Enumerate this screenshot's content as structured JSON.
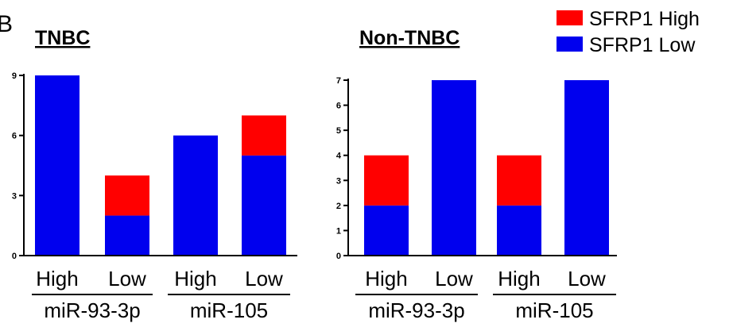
{
  "figure": {
    "panel_letter": "B"
  },
  "legend": {
    "items": [
      {
        "label": "SFRP1 High",
        "color": "#ff0000"
      },
      {
        "label": "SFRP1 Low",
        "color": "#0000ee"
      }
    ]
  },
  "colors": {
    "high": "#ff0000",
    "low": "#0000ee",
    "axis": "#000000"
  },
  "chart_data": [
    {
      "type": "bar",
      "stacked": true,
      "title": "TNBC",
      "categories": [
        "High",
        "Low",
        "High",
        "Low"
      ],
      "groups": [
        {
          "label": "miR-93-3p",
          "categories": [
            0,
            1
          ]
        },
        {
          "label": "miR-105",
          "categories": [
            2,
            3
          ]
        }
      ],
      "series": [
        {
          "name": "SFRP1 Low",
          "values": [
            9,
            2,
            6,
            5
          ]
        },
        {
          "name": "SFRP1 High",
          "values": [
            0,
            2,
            0,
            2
          ]
        }
      ],
      "ylim": [
        0,
        9
      ],
      "yticks": [
        0,
        3,
        6,
        9
      ],
      "grid": false,
      "legend": "top-right"
    },
    {
      "type": "bar",
      "stacked": true,
      "title": "Non-TNBC",
      "categories": [
        "High",
        "Low",
        "High",
        "Low"
      ],
      "groups": [
        {
          "label": "miR-93-3p",
          "categories": [
            0,
            1
          ]
        },
        {
          "label": "miR-105",
          "categories": [
            2,
            3
          ]
        }
      ],
      "series": [
        {
          "name": "SFRP1 Low",
          "values": [
            2,
            7,
            2,
            7
          ]
        },
        {
          "name": "SFRP1 High",
          "values": [
            2,
            0,
            2,
            0
          ]
        }
      ],
      "ylim": [
        0,
        7
      ],
      "yticks": [
        0,
        1,
        2,
        3,
        4,
        5,
        6,
        7
      ],
      "grid": false,
      "legend": "top-right"
    }
  ]
}
